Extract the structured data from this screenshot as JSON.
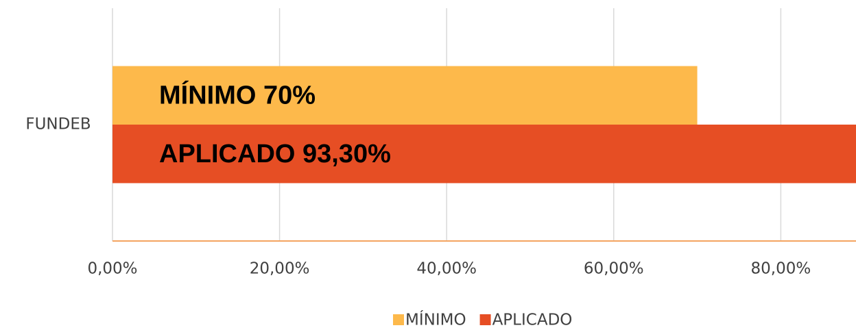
{
  "chart_data": {
    "type": "hbar",
    "categories": [
      "FUNDEB"
    ],
    "series": [
      {
        "name": "MÍNIMO",
        "color": "#FDB94B",
        "values": [
          70
        ],
        "value_labels": [
          "MÍNIMO 70%"
        ]
      },
      {
        "name": "APLICADO",
        "color": "#E64E24",
        "values": [
          93.3
        ],
        "value_labels": [
          "APLICADO 93,30%"
        ]
      }
    ],
    "xlim": [
      0,
      89
    ],
    "xticks": [
      {
        "value": 0,
        "label": "0,00%"
      },
      {
        "value": 20,
        "label": "20,00%"
      },
      {
        "value": 40,
        "label": "40,00%"
      },
      {
        "value": 60,
        "label": "60,00%"
      },
      {
        "value": 80,
        "label": "80,00%"
      }
    ],
    "grid": true,
    "axis_color": "#F4A460",
    "legend": "bottom"
  }
}
